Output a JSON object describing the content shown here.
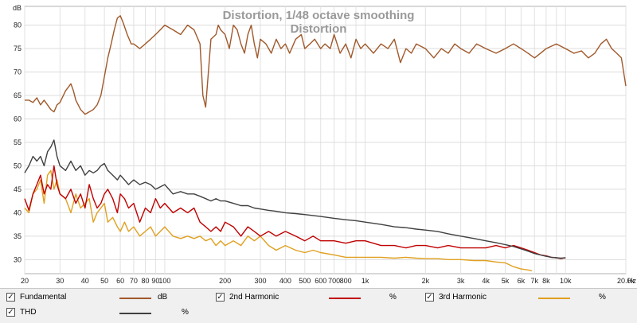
{
  "chart_data": {
    "type": "line",
    "title": "Distortion, 1/48 octave smoothing",
    "subtitle": "Distortion",
    "x_scale": "log",
    "xlim": [
      20,
      20000
    ],
    "ylim": [
      27,
      84
    ],
    "y_unit": "dB",
    "x_unit": "Hz",
    "x_ticks": [
      {
        "v": 20,
        "label": "20"
      },
      {
        "v": 30,
        "label": "30"
      },
      {
        "v": 40,
        "label": "40"
      },
      {
        "v": 50,
        "label": "50"
      },
      {
        "v": 60,
        "label": "60"
      },
      {
        "v": 70,
        "label": "70"
      },
      {
        "v": 80,
        "label": "80"
      },
      {
        "v": 90,
        "label": "90"
      },
      {
        "v": 100,
        "label": "100"
      },
      {
        "v": 200,
        "label": "200"
      },
      {
        "v": 300,
        "label": "300"
      },
      {
        "v": 400,
        "label": "400"
      },
      {
        "v": 500,
        "label": "500"
      },
      {
        "v": 600,
        "label": "600"
      },
      {
        "v": 700,
        "label": "700"
      },
      {
        "v": 800,
        "label": "800"
      },
      {
        "v": 1000,
        "label": "1k"
      },
      {
        "v": 2000,
        "label": "2k"
      },
      {
        "v": 3000,
        "label": "3k"
      },
      {
        "v": 4000,
        "label": "4k"
      },
      {
        "v": 5000,
        "label": "5k"
      },
      {
        "v": 6000,
        "label": "6k"
      },
      {
        "v": 7000,
        "label": "7k"
      },
      {
        "v": 8000,
        "label": "8k"
      },
      {
        "v": 10000,
        "label": "10k"
      },
      {
        "v": 20000,
        "label": "20.0k"
      }
    ],
    "y_ticks": [
      30,
      35,
      40,
      45,
      50,
      55,
      60,
      65,
      70,
      75,
      80
    ],
    "grid": true,
    "series": [
      {
        "name": "Fundamental",
        "unit": "dB",
        "color": "#a0592b",
        "x": [
          20,
          21,
          22,
          23,
          24,
          25,
          26,
          27,
          28,
          29,
          30,
          32,
          34,
          35,
          36,
          37,
          38,
          40,
          42,
          44,
          46,
          48,
          50,
          52,
          54,
          56,
          58,
          60,
          62,
          65,
          68,
          70,
          75,
          80,
          85,
          90,
          95,
          100,
          110,
          120,
          130,
          140,
          150,
          155,
          160,
          170,
          180,
          185,
          190,
          200,
          210,
          220,
          230,
          240,
          250,
          260,
          270,
          280,
          290,
          300,
          320,
          340,
          360,
          380,
          400,
          420,
          450,
          480,
          500,
          530,
          560,
          600,
          630,
          670,
          700,
          750,
          800,
          850,
          900,
          950,
          1000,
          1100,
          1200,
          1300,
          1400,
          1500,
          1600,
          1700,
          1800,
          2000,
          2200,
          2400,
          2600,
          2800,
          3000,
          3300,
          3600,
          4000,
          4500,
          5000,
          5500,
          6000,
          6500,
          7000,
          7500,
          8000,
          9000,
          10000,
          11000,
          12000,
          13000,
          14000,
          15000,
          16000,
          17000,
          18000,
          19000,
          20000
        ],
        "y": [
          64,
          64,
          63.5,
          64.5,
          63,
          64,
          63,
          62,
          61.5,
          63,
          63.5,
          66,
          67.5,
          66,
          64,
          63,
          62,
          61,
          61.5,
          62,
          63,
          65,
          69,
          73,
          76,
          79,
          81.5,
          82,
          80.5,
          78,
          76,
          76,
          75,
          76,
          77,
          78,
          79,
          80,
          79,
          78,
          80,
          79,
          76,
          65,
          62.5,
          77,
          78,
          80,
          79,
          78,
          75,
          80,
          79,
          76,
          74,
          78,
          80,
          76,
          73,
          77,
          76,
          74,
          77,
          75,
          76,
          74,
          77,
          78,
          75,
          76,
          77,
          75,
          76,
          75,
          78,
          74,
          76,
          73,
          77,
          75,
          76,
          74,
          76,
          75,
          77,
          72,
          75,
          74,
          76,
          75,
          73,
          75,
          74,
          76,
          75,
          74,
          76,
          75,
          74,
          75,
          76,
          75,
          74,
          73,
          74,
          75,
          76,
          75,
          74,
          74.5,
          73,
          74,
          76,
          77,
          75,
          74,
          73,
          67
        ]
      },
      {
        "name": "2nd Harmonic",
        "unit": "%",
        "color": "#c00000",
        "x": [
          20,
          21,
          22,
          23,
          24,
          25,
          26,
          27,
          28,
          29,
          30,
          32,
          34,
          36,
          38,
          40,
          42,
          44,
          46,
          48,
          50,
          52,
          55,
          58,
          60,
          63,
          66,
          70,
          75,
          80,
          85,
          90,
          95,
          100,
          110,
          120,
          130,
          140,
          150,
          160,
          170,
          180,
          190,
          200,
          220,
          240,
          260,
          280,
          300,
          330,
          360,
          400,
          450,
          500,
          550,
          600,
          700,
          800,
          900,
          1000,
          1200,
          1400,
          1600,
          1800,
          2000,
          2300,
          2600,
          3000,
          3500,
          4000,
          4500,
          5000,
          5500,
          6000,
          6500,
          7000,
          7500,
          8000,
          8500,
          9000,
          9500,
          10000
        ],
        "y": [
          43,
          40.5,
          44,
          46,
          48,
          44,
          46,
          45,
          50,
          46,
          44,
          43,
          45,
          42,
          44,
          41,
          46,
          43,
          41,
          42,
          44,
          45,
          43,
          40,
          44,
          43,
          41,
          42,
          38,
          41,
          40,
          43,
          41,
          42,
          40,
          41,
          40,
          41,
          38,
          37,
          36,
          37,
          36,
          38,
          37,
          35,
          37,
          36,
          35,
          36,
          35,
          36,
          35,
          34,
          35,
          34,
          34,
          33.5,
          34,
          34,
          33,
          33,
          32.5,
          33,
          33,
          32.5,
          33,
          32.5,
          32.5,
          32.5,
          33,
          32.5,
          33,
          32.5,
          32,
          31.5,
          31,
          30.8,
          30.5,
          30.4,
          30.2,
          30.4
        ]
      },
      {
        "name": "3rd Harmonic",
        "unit": "%",
        "color": "#e0a020",
        "x": [
          20,
          21,
          22,
          23,
          24,
          25,
          26,
          27,
          28,
          29,
          30,
          32,
          34,
          36,
          38,
          40,
          42,
          44,
          46,
          48,
          50,
          52,
          55,
          58,
          60,
          63,
          66,
          70,
          75,
          80,
          85,
          90,
          95,
          100,
          110,
          120,
          130,
          140,
          150,
          160,
          170,
          180,
          190,
          200,
          220,
          240,
          260,
          280,
          300,
          330,
          360,
          400,
          450,
          500,
          550,
          600,
          700,
          800,
          900,
          1000,
          1200,
          1400,
          1600,
          1800,
          2000,
          2300,
          2600,
          3000,
          3500,
          4000,
          4500,
          5000,
          5500,
          6000,
          6500,
          6800
        ],
        "y": [
          41,
          40,
          44,
          45,
          47,
          42,
          48,
          49,
          45,
          47,
          44,
          43,
          40,
          44,
          41,
          42,
          43,
          38,
          40,
          41,
          42,
          38,
          39,
          37,
          36,
          38,
          36,
          37,
          35,
          36,
          37,
          35,
          36,
          37,
          35,
          34.5,
          35,
          34.5,
          35,
          34,
          34.5,
          33,
          34,
          33,
          34,
          33,
          35,
          34,
          35,
          33,
          32,
          33,
          32,
          31.5,
          32,
          31.5,
          31,
          30.5,
          30.5,
          30.5,
          30.5,
          30.3,
          30.5,
          30.3,
          30.2,
          30.2,
          30,
          30,
          29.8,
          29.8,
          29.5,
          29.3,
          28.5,
          28,
          27.8,
          27.6
        ]
      },
      {
        "name": "THD",
        "unit": "%",
        "color": "#404040",
        "x": [
          20,
          21,
          22,
          23,
          24,
          25,
          26,
          27,
          28,
          29,
          30,
          32,
          34,
          36,
          38,
          40,
          42,
          44,
          46,
          48,
          50,
          52,
          55,
          58,
          60,
          63,
          66,
          70,
          75,
          80,
          85,
          90,
          95,
          100,
          110,
          120,
          130,
          140,
          150,
          160,
          170,
          180,
          190,
          200,
          220,
          240,
          260,
          280,
          300,
          330,
          360,
          400,
          450,
          500,
          550,
          600,
          700,
          800,
          900,
          1000,
          1200,
          1400,
          1600,
          1800,
          2000,
          2300,
          2600,
          3000,
          3500,
          4000,
          4500,
          5000,
          5500,
          6000,
          6500,
          7000,
          7500,
          8000,
          8500,
          9000,
          9500,
          10000
        ],
        "y": [
          48.5,
          50,
          52,
          51,
          52,
          50,
          53,
          54,
          55.5,
          52,
          50,
          49,
          51,
          49,
          50,
          48,
          49,
          48.5,
          49,
          50,
          50.5,
          49,
          48,
          47,
          48,
          47,
          46,
          47,
          46,
          46.5,
          46,
          45,
          45.5,
          46,
          44,
          44.5,
          44,
          44,
          43.5,
          43,
          42.5,
          43,
          42.5,
          42.5,
          42,
          41.5,
          41.5,
          41,
          40.8,
          40.5,
          40.3,
          40,
          39.8,
          39.6,
          39.4,
          39.2,
          38.8,
          38.5,
          38.3,
          38,
          37.5,
          37,
          36.8,
          36.5,
          36.3,
          36,
          35.5,
          35,
          34.5,
          34,
          33.6,
          33.2,
          32.8,
          32.3,
          31.8,
          31.3,
          31,
          30.7,
          30.5,
          30.4,
          30.3,
          30.4
        ]
      }
    ]
  },
  "legend": {
    "rows": [
      [
        {
          "label": "Fundamental",
          "unit": "dB",
          "color": "#a0592b"
        },
        {
          "label": "2nd Harmonic",
          "unit": "%",
          "color": "#c00000"
        },
        {
          "label": "3rd Harmonic",
          "unit": "%",
          "color": "#e0a020"
        }
      ],
      [
        {
          "label": "THD",
          "unit": "%",
          "color": "#404040"
        }
      ]
    ]
  }
}
